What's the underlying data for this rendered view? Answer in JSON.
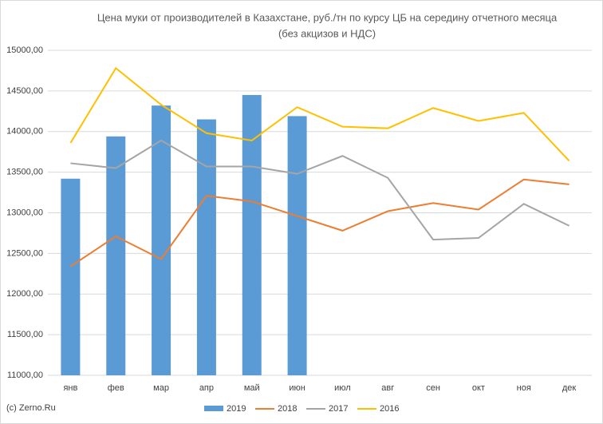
{
  "chart_data": {
    "type": "combo",
    "title": "Цена муки от производителей в Казахстане, руб./тн по курсу ЦБ на середину отчетного месяца",
    "subtitle": "(без акцизов и НДС)",
    "source": "(c) Zerno.Ru",
    "categories": [
      "янв",
      "фев",
      "мар",
      "апр",
      "май",
      "июн",
      "июл",
      "авг",
      "сен",
      "окт",
      "ноя",
      "дек"
    ],
    "series": [
      {
        "name": "2019",
        "type": "bar",
        "color": "#5b9bd5",
        "values": [
          13420,
          13940,
          14320,
          14150,
          14450,
          14190,
          null,
          null,
          null,
          null,
          null,
          null
        ]
      },
      {
        "name": "2018",
        "type": "line",
        "color": "#ed7d31",
        "values": [
          12340,
          12710,
          12430,
          13210,
          13140,
          12960,
          12780,
          13020,
          13120,
          13040,
          13410,
          13350
        ]
      },
      {
        "name": "2017",
        "type": "line",
        "color": "#a5a5a5",
        "values": [
          13610,
          13550,
          13890,
          13570,
          13570,
          13480,
          13700,
          13430,
          12670,
          12690,
          13110,
          12840
        ]
      },
      {
        "name": "2016",
        "type": "line",
        "color": "#ffc000",
        "values": [
          13860,
          14780,
          14330,
          13980,
          13890,
          14300,
          14060,
          14040,
          14290,
          14130,
          14230,
          13640
        ]
      }
    ],
    "ylim": [
      11000,
      15000
    ],
    "yticks": [
      {
        "value": 11000,
        "label": "11000,00"
      },
      {
        "value": 11500,
        "label": "11500,00"
      },
      {
        "value": 12000,
        "label": "12000,00"
      },
      {
        "value": 12500,
        "label": "12500,00"
      },
      {
        "value": 13000,
        "label": "13000,00"
      },
      {
        "value": 13500,
        "label": "13500,00"
      },
      {
        "value": 14000,
        "label": "14000,00"
      },
      {
        "value": 14500,
        "label": "14500,00"
      },
      {
        "value": 15000,
        "label": "15000,00"
      }
    ],
    "grid": true
  }
}
